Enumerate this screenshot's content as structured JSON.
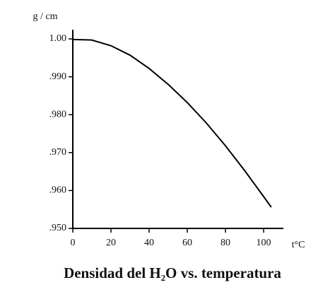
{
  "chart_data": {
    "type": "line",
    "title": "Densidad del H₂O vs. temperatura",
    "y_label": "g / cm",
    "x_label": "t°C",
    "x": [
      0,
      10,
      20,
      30,
      40,
      50,
      60,
      70,
      80,
      90,
      100,
      104
    ],
    "series": [
      {
        "name": "H2O",
        "color": "#000000",
        "values": [
          0.99984,
          0.9997,
          0.9982,
          0.9957,
          0.9922,
          0.988,
          0.9832,
          0.9778,
          0.9718,
          0.9653,
          0.9584,
          0.9556
        ]
      }
    ],
    "xlim": [
      0,
      110
    ],
    "xticks": [
      0,
      20,
      40,
      60,
      80,
      100
    ],
    "ylim": [
      0.95,
      1.0
    ],
    "yticks": [
      {
        "value": 0.95,
        "label": ".950"
      },
      {
        "value": 0.96,
        "label": ".960"
      },
      {
        "value": 0.97,
        "label": ".970"
      },
      {
        "value": 0.98,
        "label": ".980"
      },
      {
        "value": 0.99,
        "label": ".990"
      },
      {
        "value": 1.0,
        "label": "1.00"
      }
    ]
  }
}
